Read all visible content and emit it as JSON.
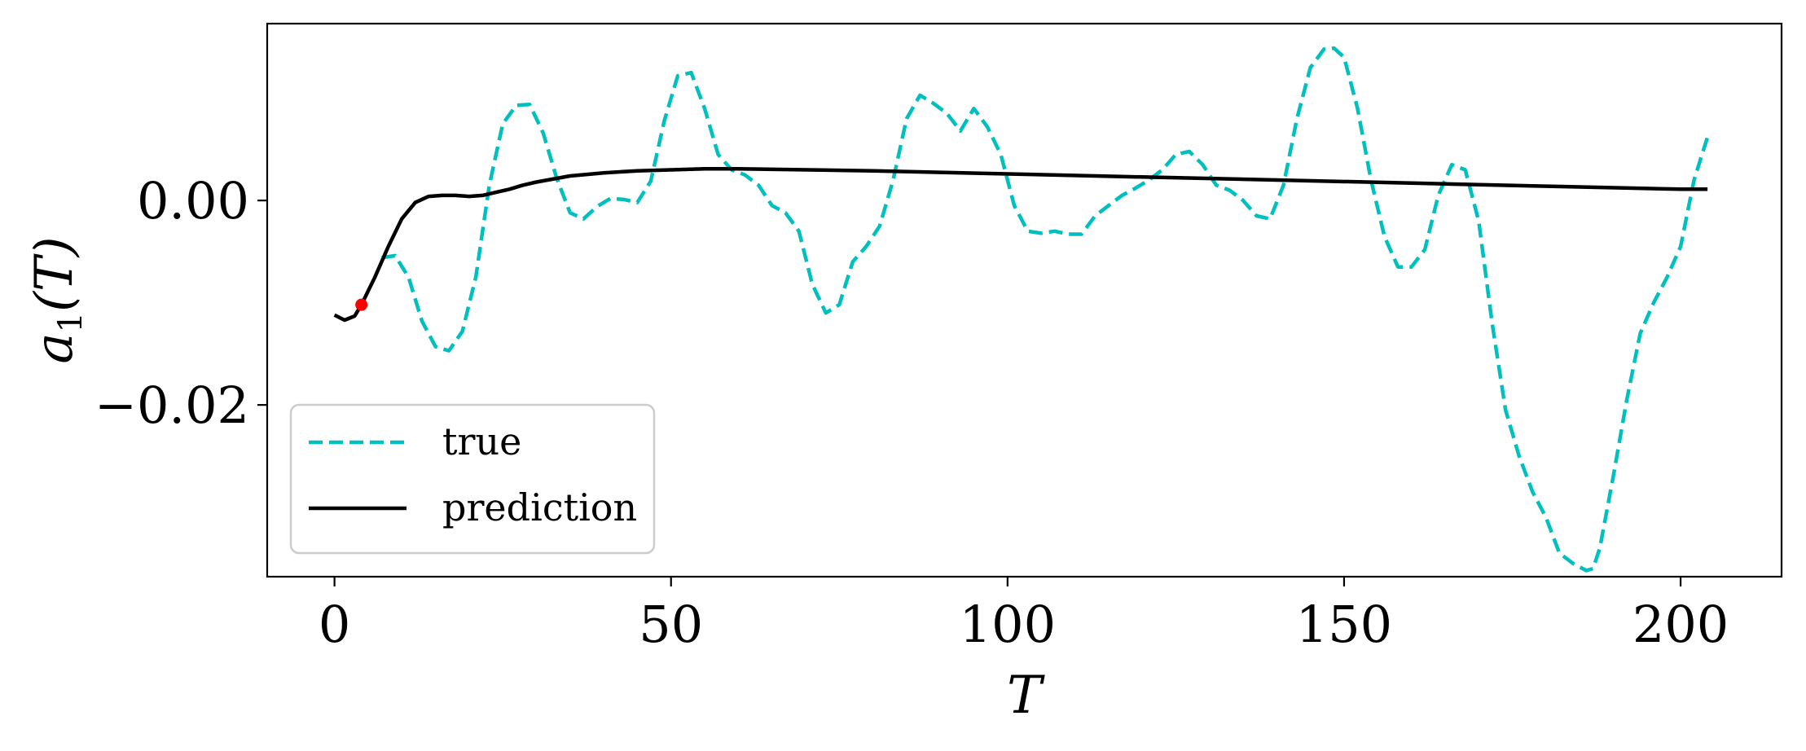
{
  "chart_data": {
    "type": "line",
    "title": "",
    "xlabel": "T",
    "ylabel": {
      "base": "a",
      "sub": "1",
      "paren": "(T)"
    },
    "xlim": [
      -10,
      215
    ],
    "ylim": [
      -0.0368,
      0.0173
    ],
    "xticks": [
      0,
      50,
      100,
      150,
      200
    ],
    "xtick_labels": [
      "0",
      "50",
      "100",
      "150",
      "200"
    ],
    "yticks": [
      0.0,
      -0.02
    ],
    "ytick_labels": [
      "0.00",
      "−0.02"
    ],
    "grid": false,
    "legend_position": "lower-left",
    "series": [
      {
        "name": "true",
        "color": "#00bfbf",
        "style": "dashed",
        "x": [
          7,
          9,
          11,
          13,
          15,
          17,
          19,
          21,
          23,
          25,
          27,
          29,
          31,
          33,
          35,
          37,
          39,
          41,
          43,
          45,
          47,
          49,
          51,
          53,
          55,
          57,
          59,
          61,
          63,
          65,
          67,
          69,
          71,
          73,
          75,
          77,
          79,
          81,
          83,
          85,
          87,
          89,
          91,
          93,
          95,
          97,
          99,
          101,
          103,
          105,
          107,
          109,
          111,
          113,
          115,
          117,
          119,
          121,
          123,
          125,
          127,
          129,
          131,
          133,
          135,
          137,
          139,
          141,
          143,
          145,
          147,
          148.5,
          150,
          152,
          154,
          156,
          158,
          160,
          162,
          164,
          166,
          168,
          170,
          172,
          174,
          176,
          178,
          180,
          182,
          184,
          186,
          187,
          188,
          190,
          192,
          194,
          196,
          198,
          200,
          202,
          204
        ],
        "values": [
          -0.0056,
          -0.0054,
          -0.0075,
          -0.0118,
          -0.0143,
          -0.0147,
          -0.0128,
          -0.0075,
          0.0015,
          0.0075,
          0.0093,
          0.0094,
          0.0066,
          0.0022,
          -0.0012,
          -0.0018,
          -0.0006,
          0.0002,
          0.0001,
          -0.0002,
          0.0019,
          0.0078,
          0.0122,
          0.0125,
          0.009,
          0.0045,
          0.003,
          0.0025,
          0.0015,
          -0.0005,
          -0.0012,
          -0.003,
          -0.0082,
          -0.011,
          -0.0102,
          -0.006,
          -0.0045,
          -0.0025,
          0.002,
          0.008,
          0.0103,
          0.0095,
          0.0085,
          0.0068,
          0.009,
          0.0072,
          0.0045,
          -0.0005,
          -0.003,
          -0.0032,
          -0.003,
          -0.0033,
          -0.0033,
          -0.0015,
          -0.0005,
          0.0005,
          0.0012,
          0.002,
          0.003,
          0.0045,
          0.0048,
          0.0035,
          0.0015,
          0.001,
          0.0,
          -0.0015,
          -0.0018,
          0.0015,
          0.008,
          0.013,
          0.0148,
          0.0149,
          0.014,
          0.009,
          0.002,
          -0.0035,
          -0.0065,
          -0.0065,
          -0.0048,
          0.0005,
          0.0035,
          0.003,
          -0.002,
          -0.012,
          -0.0205,
          -0.025,
          -0.0285,
          -0.031,
          -0.0345,
          -0.0355,
          -0.0362,
          -0.036,
          -0.034,
          -0.027,
          -0.0195,
          -0.013,
          -0.01,
          -0.0075,
          -0.0045,
          0.002,
          0.0062
        ]
      },
      {
        "name": "prediction",
        "color": "#000000",
        "style": "solid",
        "x": [
          0,
          1.5,
          3,
          4,
          6,
          8,
          10,
          12,
          14,
          16,
          18,
          20,
          22,
          24,
          26,
          28,
          30,
          35,
          40,
          45,
          50,
          55,
          60,
          80,
          100,
          120,
          140,
          160,
          180,
          200,
          204
        ],
        "values": [
          -0.0112,
          -0.0117,
          -0.0113,
          -0.0102,
          -0.0075,
          -0.0045,
          -0.0018,
          -0.0002,
          0.0004,
          0.0005,
          0.0005,
          0.0004,
          0.0005,
          0.0008,
          0.0011,
          0.0015,
          0.0018,
          0.0024,
          0.0027,
          0.0029,
          0.003,
          0.0031,
          0.0031,
          0.0029,
          0.0026,
          0.0023,
          0.002,
          0.0017,
          0.0014,
          0.0011,
          0.0011
        ]
      }
    ],
    "highlight_point": {
      "x": 4,
      "y": -0.0102,
      "color": "#ff0000"
    }
  }
}
